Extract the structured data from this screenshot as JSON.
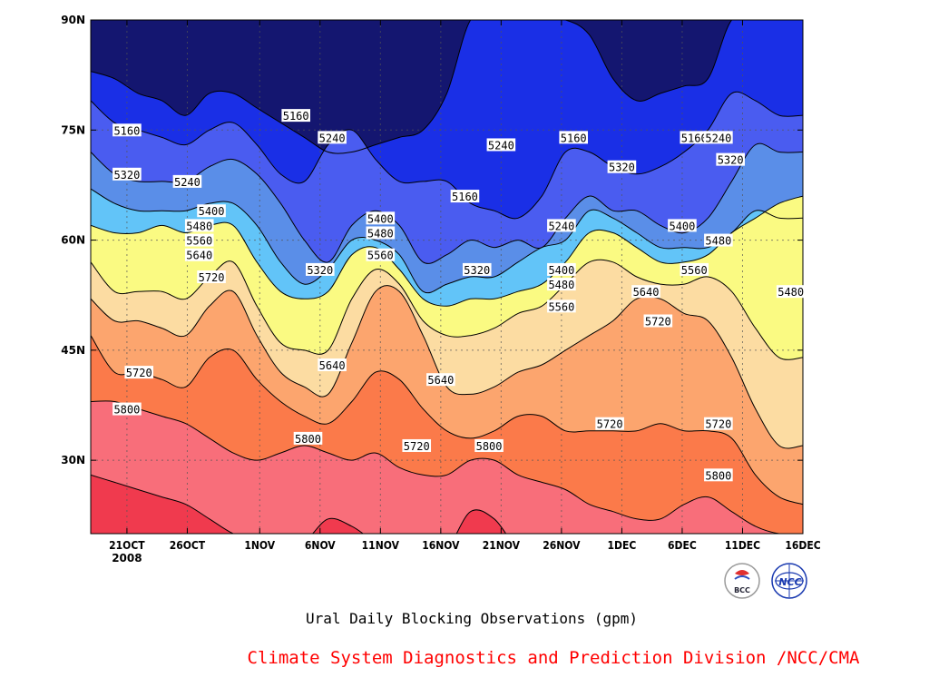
{
  "chart_data": {
    "type": "heatmap",
    "subtype": "filled-contour",
    "title": "",
    "xlabel": "",
    "ylabel": "",
    "x_range": [
      "2008-10-18",
      "2008-12-16"
    ],
    "y_range_lat": [
      20,
      90
    ],
    "x_ticks": [
      {
        "date": "2008-10-21",
        "label": "21OCT",
        "sublabel": "2008"
      },
      {
        "date": "2008-10-26",
        "label": "26OCT",
        "sublabel": ""
      },
      {
        "date": "2008-11-01",
        "label": "1NOV",
        "sublabel": ""
      },
      {
        "date": "2008-11-06",
        "label": "6NOV",
        "sublabel": ""
      },
      {
        "date": "2008-11-11",
        "label": "11NOV",
        "sublabel": ""
      },
      {
        "date": "2008-11-16",
        "label": "16NOV",
        "sublabel": ""
      },
      {
        "date": "2008-11-21",
        "label": "21NOV",
        "sublabel": ""
      },
      {
        "date": "2008-11-26",
        "label": "26NOV",
        "sublabel": ""
      },
      {
        "date": "2008-12-01",
        "label": "1DEC",
        "sublabel": ""
      },
      {
        "date": "2008-12-06",
        "label": "6DEC",
        "sublabel": ""
      },
      {
        "date": "2008-12-11",
        "label": "11DEC",
        "sublabel": ""
      },
      {
        "date": "2008-12-16",
        "label": "16DEC",
        "sublabel": ""
      }
    ],
    "y_ticks": [
      {
        "lat": 30,
        "label": "30N"
      },
      {
        "lat": 45,
        "label": "45N"
      },
      {
        "lat": 60,
        "label": "60N"
      },
      {
        "lat": 75,
        "label": "75N"
      },
      {
        "lat": 90,
        "label": "90N"
      }
    ],
    "grid": true,
    "units": "gpm",
    "contour_levels": [
      5160,
      5240,
      5320,
      5400,
      5480,
      5560,
      5640,
      5720,
      5800
    ],
    "fill_colors": [
      "#141670",
      "#1a2fe6",
      "#4a5cf0",
      "#5a8ee8",
      "#62c4f8",
      "#fafa82",
      "#fcdca2",
      "#fca56e",
      "#fb7a4a",
      "#f86e7a",
      "#f03a4e"
    ],
    "contour_boundaries": [
      {
        "level": 5160,
        "lat": [
          83,
          82,
          80,
          79,
          77,
          80,
          80,
          78,
          76,
          74,
          72,
          72,
          73,
          74,
          75,
          80,
          90,
          90,
          90,
          90,
          90,
          88,
          82,
          79,
          80,
          81,
          82,
          90,
          90,
          90,
          90
        ]
      },
      {
        "level": 5240,
        "lat": [
          79,
          76,
          75,
          74,
          73,
          75,
          76,
          73,
          69,
          68,
          73,
          75,
          71,
          68,
          68,
          68,
          65,
          64,
          63,
          66,
          72,
          72,
          70,
          69,
          70,
          72,
          75,
          80,
          79,
          77,
          77
        ]
      },
      {
        "level": 5320,
        "lat": [
          72,
          69,
          68,
          68,
          68,
          70,
          71,
          69,
          65,
          60,
          57,
          62,
          64,
          62,
          57,
          58,
          60,
          59,
          60,
          59,
          63,
          66,
          64,
          64,
          62,
          61,
          63,
          68,
          73,
          72,
          72
        ]
      },
      {
        "level": 5400,
        "lat": [
          67,
          65,
          64,
          64,
          64,
          65,
          65,
          62,
          57,
          54,
          56,
          60,
          60,
          58,
          53,
          54,
          55,
          55,
          57,
          59,
          60,
          64,
          63,
          61,
          59,
          59,
          59,
          61,
          64,
          63,
          63
        ]
      },
      {
        "level": 5480,
        "lat": [
          62,
          61,
          61,
          62,
          61,
          62,
          62,
          57,
          53,
          52,
          53,
          58,
          59,
          56,
          52,
          51,
          52,
          52,
          53,
          54,
          57,
          61,
          61,
          59,
          57,
          57,
          58,
          61,
          63,
          65,
          66
        ]
      },
      {
        "level": 5560,
        "lat": [
          57,
          53,
          53,
          53,
          52,
          55,
          57,
          51,
          46,
          45,
          45,
          52,
          56,
          54,
          49,
          47,
          47,
          48,
          50,
          51,
          54,
          57,
          57,
          55,
          54,
          54,
          55,
          53,
          48,
          44,
          44
        ]
      },
      {
        "level": 5640,
        "lat": [
          52,
          49,
          49,
          48,
          47,
          51,
          53,
          47,
          42,
          40,
          39,
          46,
          53,
          53,
          47,
          40,
          39,
          40,
          42,
          43,
          45,
          47,
          49,
          52,
          52,
          50,
          49,
          44,
          37,
          32,
          32
        ]
      },
      {
        "level": 5720,
        "lat": [
          47,
          42,
          42,
          41,
          40,
          44,
          45,
          41,
          38,
          36,
          35,
          38,
          42,
          41,
          37,
          34,
          33,
          34,
          36,
          36,
          34,
          34,
          34,
          34,
          35,
          34,
          34,
          33,
          28,
          25,
          24
        ]
      },
      {
        "level": 5800,
        "lat": [
          38,
          38,
          37,
          36,
          35,
          33,
          31,
          30,
          31,
          32,
          31,
          30,
          31,
          29,
          28,
          28,
          30,
          30,
          28,
          27,
          26,
          24,
          23,
          22,
          22,
          24,
          25,
          23,
          21,
          20,
          20
        ]
      },
      {
        "level": 5880,
        "lat": [
          28,
          27,
          26,
          25,
          24,
          22,
          20,
          19,
          19,
          19,
          22,
          21,
          19,
          19,
          18,
          18,
          23,
          22,
          18,
          18,
          18,
          18,
          18,
          18,
          18,
          18,
          18,
          18,
          18,
          18,
          18
        ]
      }
    ],
    "contour_labels": [
      {
        "text": "5160",
        "date": "2008-10-21",
        "lat": 75
      },
      {
        "text": "5320",
        "date": "2008-10-21",
        "lat": 69
      },
      {
        "text": "5720",
        "date": "2008-10-22",
        "lat": 42
      },
      {
        "text": "5800",
        "date": "2008-10-21",
        "lat": 37
      },
      {
        "text": "5240",
        "date": "2008-10-26",
        "lat": 68
      },
      {
        "text": "5400",
        "date": "2008-10-28",
        "lat": 64
      },
      {
        "text": "5480",
        "date": "2008-10-27",
        "lat": 62
      },
      {
        "text": "5560",
        "date": "2008-10-27",
        "lat": 60
      },
      {
        "text": "5640",
        "date": "2008-10-27",
        "lat": 58
      },
      {
        "text": "5720",
        "date": "2008-10-28",
        "lat": 55
      },
      {
        "text": "5160",
        "date": "2008-11-04",
        "lat": 77
      },
      {
        "text": "5240",
        "date": "2008-11-07",
        "lat": 74
      },
      {
        "text": "5320",
        "date": "2008-11-06",
        "lat": 56
      },
      {
        "text": "5640",
        "date": "2008-11-07",
        "lat": 43
      },
      {
        "text": "5800",
        "date": "2008-11-05",
        "lat": 33
      },
      {
        "text": "5400",
        "date": "2008-11-11",
        "lat": 63
      },
      {
        "text": "5480",
        "date": "2008-11-11",
        "lat": 61
      },
      {
        "text": "5560",
        "date": "2008-11-11",
        "lat": 58
      },
      {
        "text": "5720",
        "date": "2008-11-14",
        "lat": 32
      },
      {
        "text": "5640",
        "date": "2008-11-16",
        "lat": 41
      },
      {
        "text": "5160",
        "date": "2008-11-18",
        "lat": 66
      },
      {
        "text": "5320",
        "date": "2008-11-19",
        "lat": 56
      },
      {
        "text": "5800",
        "date": "2008-11-20",
        "lat": 32
      },
      {
        "text": "5240",
        "date": "2008-11-21",
        "lat": 73
      },
      {
        "text": "5160",
        "date": "2008-11-27",
        "lat": 74
      },
      {
        "text": "5240",
        "date": "2008-11-26",
        "lat": 62
      },
      {
        "text": "5400",
        "date": "2008-11-26",
        "lat": 56
      },
      {
        "text": "5480",
        "date": "2008-11-26",
        "lat": 54
      },
      {
        "text": "5560",
        "date": "2008-11-26",
        "lat": 51
      },
      {
        "text": "5720",
        "date": "2008-11-30",
        "lat": 35
      },
      {
        "text": "5320",
        "date": "2008-12-01",
        "lat": 70
      },
      {
        "text": "5640",
        "date": "2008-12-03",
        "lat": 53
      },
      {
        "text": "5720",
        "date": "2008-12-04",
        "lat": 49
      },
      {
        "text": "5400",
        "date": "2008-12-06",
        "lat": 62
      },
      {
        "text": "5160",
        "date": "2008-12-07",
        "lat": 74
      },
      {
        "text": "5240",
        "date": "2008-12-09",
        "lat": 74
      },
      {
        "text": "5320",
        "date": "2008-12-10",
        "lat": 71
      },
      {
        "text": "5480",
        "date": "2008-12-09",
        "lat": 60
      },
      {
        "text": "5560",
        "date": "2008-12-07",
        "lat": 56
      },
      {
        "text": "5720",
        "date": "2008-12-09",
        "lat": 35
      },
      {
        "text": "5800",
        "date": "2008-12-09",
        "lat": 28
      },
      {
        "text": "5480",
        "date": "2008-12-15",
        "lat": 53
      }
    ]
  },
  "subtitle": "Ural Daily Blocking Observations (gpm)",
  "credit": "Climate System Diagnostics and Prediction Division /NCC/CMA",
  "logos": {
    "left_text": "BCC",
    "right_text": "NCC"
  }
}
